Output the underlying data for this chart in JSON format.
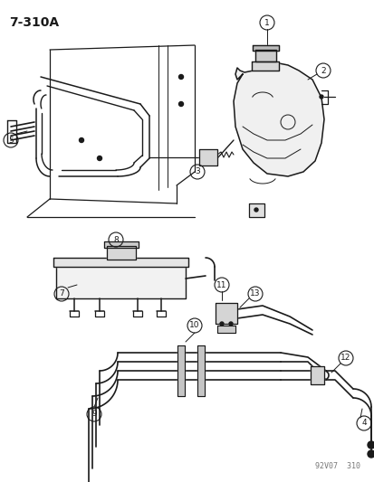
{
  "title": "7-310A",
  "bg": "#ffffff",
  "lc": "#1a1a1a",
  "watermark": "92V07  310",
  "figsize": [
    4.14,
    5.33
  ],
  "dpi": 100
}
